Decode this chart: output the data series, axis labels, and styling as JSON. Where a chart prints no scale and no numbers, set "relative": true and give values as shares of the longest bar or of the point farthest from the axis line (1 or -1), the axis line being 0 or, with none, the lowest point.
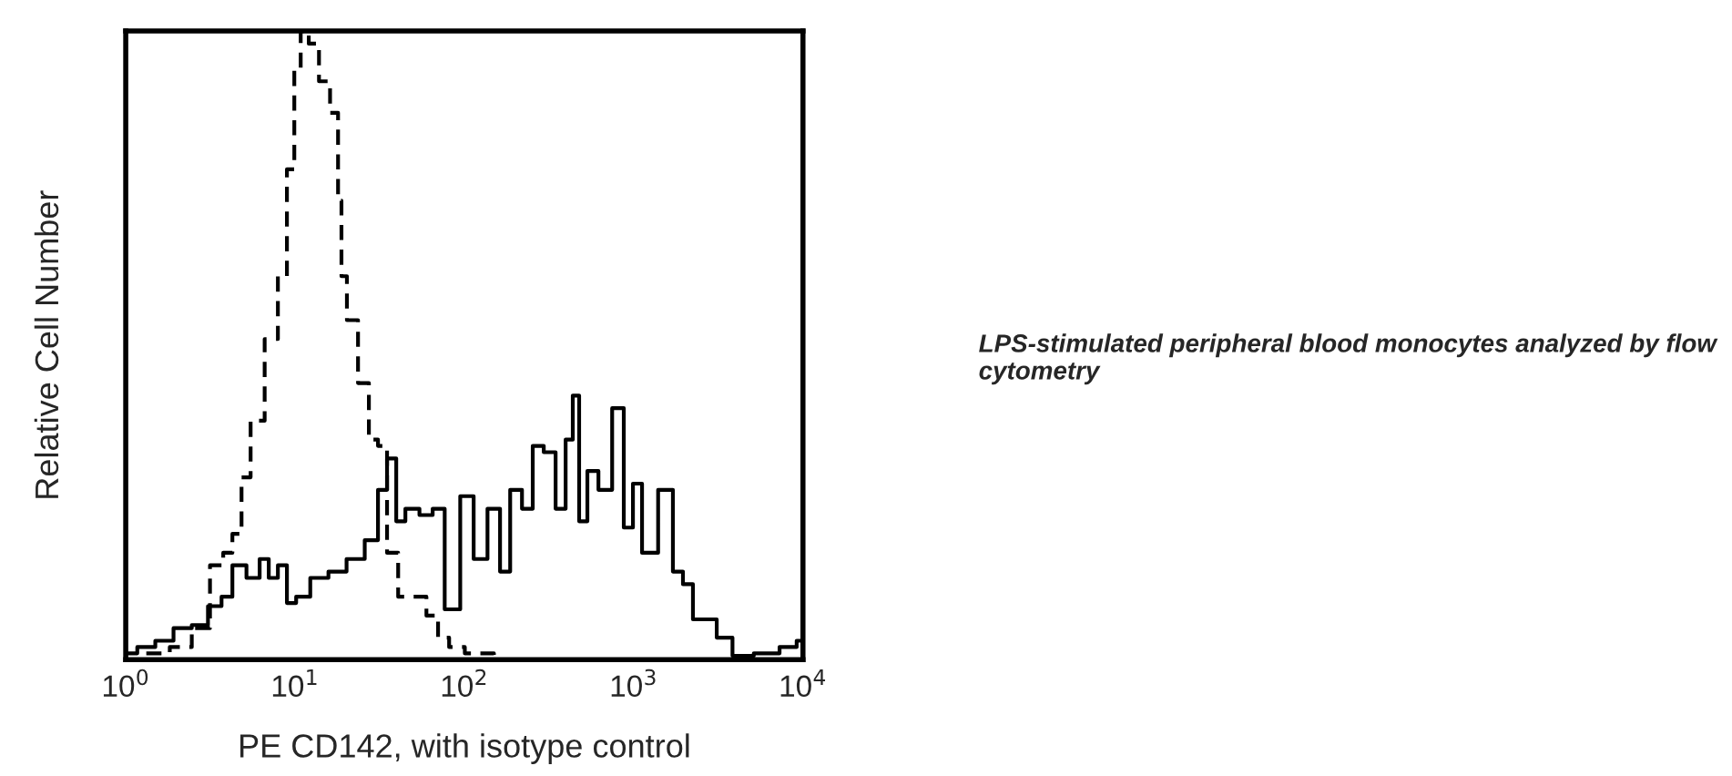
{
  "chart_data": {
    "type": "step",
    "relative": true,
    "log": "x",
    "xlabel": "PE CD142, with isotype control",
    "ylabel": "Relative Cell Number",
    "xlim": [
      1,
      10000
    ],
    "xticks": [
      {
        "value": 1,
        "label": "10$^{0}$"
      },
      {
        "value": 10,
        "label": "10$^{1}$"
      },
      {
        "value": 100,
        "label": "10$^{2}$"
      },
      {
        "value": 1000,
        "label": "10$^{3}$"
      },
      {
        "value": 10000,
        "label": "10$^{4}$"
      }
    ],
    "annotations": [
      "LPS-stimulated peripheral blood monocytes analyzed by flow cytometry"
    ],
    "series": [
      {
        "color": "#000000",
        "line_style": "dashed",
        "x": [
          1.03,
          1.49,
          2.15,
          2.76,
          3.53,
          4.0,
          4.53,
          5.13,
          5.8,
          7.43,
          8.41,
          9.5,
          10.3,
          11.3,
          12.8,
          14.9,
          17.3,
          18.6,
          19.0,
          21.5,
          25.6,
          29.0,
          32.8,
          37.1,
          44.2,
          53.8,
          65.6,
          74.3,
          88.3,
          113,
          186
        ],
        "values": [
          0,
          0.01,
          0.02,
          0.05,
          0.15,
          0.17,
          0.2,
          0.29,
          0.38,
          0.51,
          0.61,
          0.78,
          0.94,
          1.0,
          0.98,
          0.92,
          0.87,
          0.73,
          0.61,
          0.54,
          0.44,
          0.35,
          0.34,
          0.17,
          0.1,
          0.1,
          0.07,
          0.035,
          0.02,
          0.01,
          0
        ]
      },
      {
        "color": "#000000",
        "line_style": "solid",
        "x": [
          1.03,
          1.31,
          1.68,
          2.15,
          2.76,
          3.36,
          4.0,
          4.53,
          5.8,
          6.56,
          7.43,
          8.41,
          9.5,
          10.8,
          13.8,
          17.7,
          22.6,
          29.0,
          32.8,
          37.1,
          42.1,
          47.6,
          61.0,
          69.0,
          84.1,
          105,
          122,
          152,
          173,
          200,
          238,
          269,
          320,
          372,
          421,
          453,
          500,
          566,
          673,
          820,
          929,
          1052,
          1190,
          1600,
          1811,
          2100,
          2380,
          2830,
          3360,
          4310,
          5940,
          8610,
          9750
        ],
        "values": [
          0.01,
          0.02,
          0.03,
          0.05,
          0.055,
          0.085,
          0.1,
          0.15,
          0.13,
          0.16,
          0.13,
          0.15,
          0.09,
          0.1,
          0.13,
          0.14,
          0.16,
          0.19,
          0.27,
          0.32,
          0.22,
          0.24,
          0.23,
          0.24,
          0.08,
          0.26,
          0.16,
          0.24,
          0.14,
          0.27,
          0.24,
          0.34,
          0.33,
          0.24,
          0.35,
          0.42,
          0.22,
          0.3,
          0.27,
          0.4,
          0.21,
          0.28,
          0.17,
          0.27,
          0.14,
          0.12,
          0.064,
          0.064,
          0.035,
          0.006,
          0.01,
          0.02,
          0.03
        ]
      }
    ]
  }
}
